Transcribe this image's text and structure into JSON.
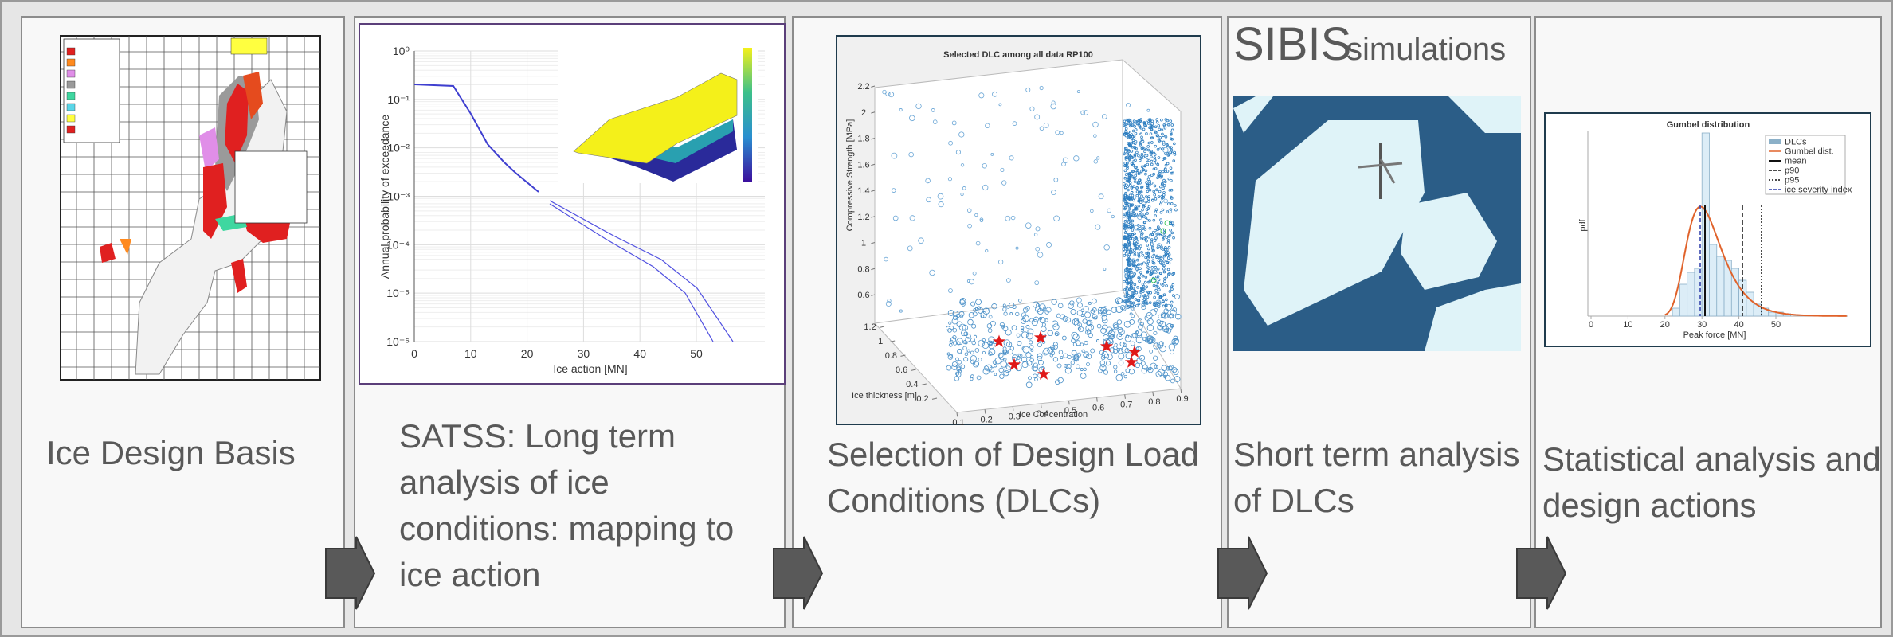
{
  "panels": [
    {
      "caption": [
        "Ice Design Basis"
      ]
    },
    {
      "caption": [
        "SATSS: Long term",
        "analysis of ice",
        "conditions: mapping to",
        "ice action"
      ],
      "chart": {
        "ylabel": "Annual probability of exceedance",
        "xlabel": "Ice action [MN]",
        "yscale": "log",
        "xticks": [
          0,
          10,
          20,
          30,
          40,
          50
        ],
        "yticks": [
          {
            "value": 1,
            "label": "10⁰"
          },
          {
            "value": 0.1,
            "label": "10⁻¹"
          },
          {
            "value": 0.01,
            "label": "10⁻²"
          },
          {
            "value": 0.001,
            "label": "10⁻³"
          },
          {
            "value": 0.0001,
            "label": "10⁻⁴"
          },
          {
            "value": 1e-05,
            "label": "10⁻⁵"
          },
          {
            "value": 1e-06,
            "label": "10⁻⁶"
          }
        ]
      }
    },
    {
      "caption": [
        "Selection of Design Load",
        "Conditions (DLCs)"
      ],
      "chart": {
        "title": "Selected DLC among all data RP100",
        "xlabel": "Ice Concentration",
        "ylabel": "Ice thickness [m]",
        "zlabel": "Compressive Strength [MPa]",
        "xticks": [
          0.1,
          0.2,
          0.3,
          0.4,
          0.5,
          0.6,
          0.7,
          0.8,
          0.9
        ],
        "yticks": [
          0.2,
          0.4,
          0.6,
          0.8,
          1,
          1.2
        ],
        "zticks": [
          0.6,
          0.8,
          1,
          1.2,
          1.4,
          1.6,
          1.8,
          2,
          2.2
        ]
      }
    },
    {
      "title_main": "SIBIS",
      "title_sub": "simulations",
      "caption": [
        "Short term analysis",
        "of DLCs"
      ]
    },
    {
      "caption": [
        "Statistical analysis and",
        "design actions"
      ],
      "chart": {
        "title": "Gumbel distribution",
        "xlabel": "Peak force [MN]",
        "ylabel": "pdf",
        "xticks": [
          0,
          10,
          20,
          30,
          40,
          50
        ],
        "legend": [
          "DLCs",
          "Gumbel dist.",
          "mean",
          "p90",
          "p95",
          "ice severity index"
        ]
      }
    }
  ]
}
